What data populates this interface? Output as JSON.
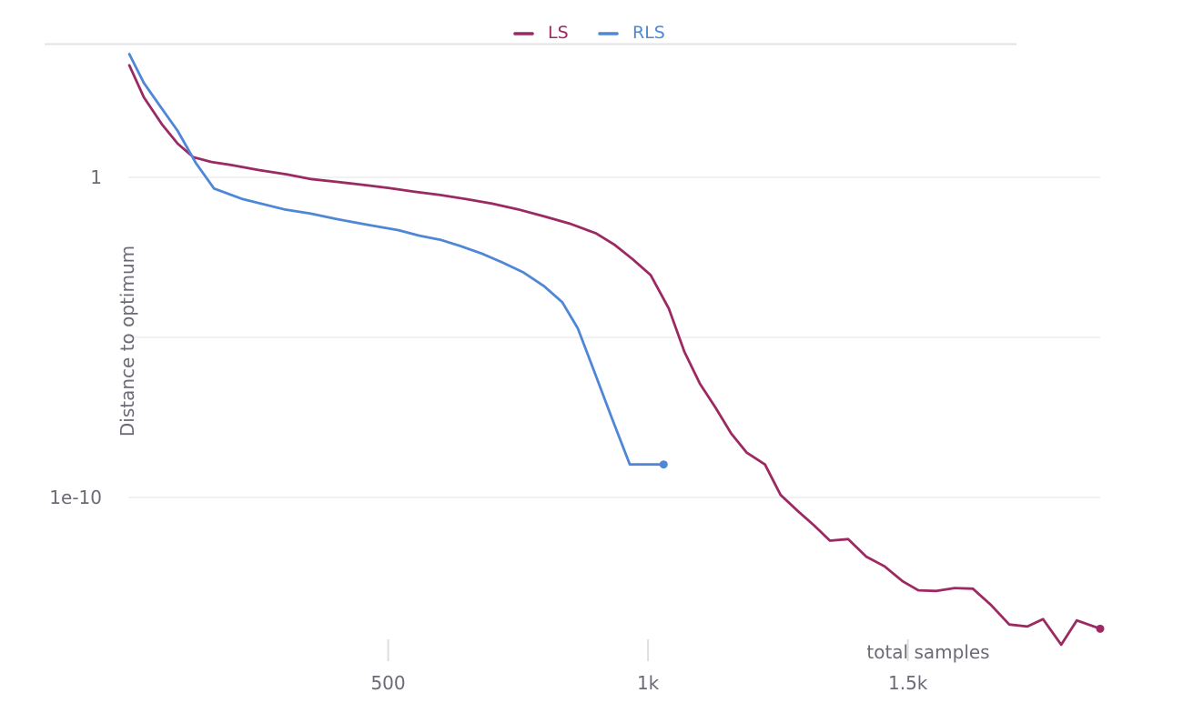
{
  "chart_data": {
    "type": "line",
    "xlabel": "total samples",
    "ylabel": "Distance to optimum",
    "x_scale": "linear",
    "y_scale": "log",
    "xlim": [
      0,
      1870
    ],
    "ylim_log10": [
      -18.3,
      7.5
    ],
    "x_ticks": [
      500,
      1000,
      1500
    ],
    "x_tick_labels": [
      "500",
      "1k",
      "1.5k"
    ],
    "y_ticks_log10": [
      0,
      -5,
      -10
    ],
    "y_tick_labels": [
      "1",
      "",
      "1e-10"
    ],
    "grid": true,
    "legend_position": "top-center",
    "series": [
      {
        "name": "LS",
        "color": "#9c2a62",
        "points_log10": [
          [
            2,
            3.5
          ],
          [
            30,
            2.5
          ],
          [
            65,
            1.65
          ],
          [
            95,
            1.05
          ],
          [
            125,
            0.63
          ],
          [
            160,
            0.48
          ],
          [
            200,
            0.38
          ],
          [
            250,
            0.23
          ],
          [
            305,
            0.09
          ],
          [
            350,
            -0.05
          ],
          [
            400,
            -0.14
          ],
          [
            450,
            -0.23
          ],
          [
            500,
            -0.33
          ],
          [
            550,
            -0.45
          ],
          [
            600,
            -0.55
          ],
          [
            650,
            -0.68
          ],
          [
            700,
            -0.82
          ],
          [
            750,
            -1.0
          ],
          [
            800,
            -1.22
          ],
          [
            850,
            -1.45
          ],
          [
            900,
            -1.75
          ],
          [
            935,
            -2.1
          ],
          [
            970,
            -2.55
          ],
          [
            1005,
            -3.05
          ],
          [
            1040,
            -4.1
          ],
          [
            1070,
            -5.45
          ],
          [
            1100,
            -6.45
          ],
          [
            1130,
            -7.2
          ],
          [
            1160,
            -8.0
          ],
          [
            1190,
            -8.6
          ],
          [
            1225,
            -8.97
          ],
          [
            1255,
            -9.92
          ],
          [
            1290,
            -10.45
          ],
          [
            1320,
            -10.88
          ],
          [
            1350,
            -11.35
          ],
          [
            1385,
            -11.3
          ],
          [
            1420,
            -11.85
          ],
          [
            1455,
            -12.15
          ],
          [
            1490,
            -12.62
          ],
          [
            1520,
            -12.9
          ],
          [
            1555,
            -12.92
          ],
          [
            1590,
            -12.83
          ],
          [
            1625,
            -12.85
          ],
          [
            1660,
            -13.36
          ],
          [
            1695,
            -13.97
          ],
          [
            1730,
            -14.03
          ],
          [
            1760,
            -13.8
          ],
          [
            1795,
            -14.6
          ],
          [
            1825,
            -13.84
          ],
          [
            1870,
            -14.1
          ]
        ]
      },
      {
        "name": "RLS",
        "color": "#4f87d6",
        "points_log10": [
          [
            2,
            3.85
          ],
          [
            30,
            2.95
          ],
          [
            60,
            2.25
          ],
          [
            95,
            1.45
          ],
          [
            130,
            0.45
          ],
          [
            165,
            -0.35
          ],
          [
            220,
            -0.68
          ],
          [
            300,
            -1.0
          ],
          [
            350,
            -1.13
          ],
          [
            400,
            -1.3
          ],
          [
            460,
            -1.48
          ],
          [
            520,
            -1.65
          ],
          [
            560,
            -1.82
          ],
          [
            600,
            -1.95
          ],
          [
            640,
            -2.15
          ],
          [
            680,
            -2.38
          ],
          [
            720,
            -2.66
          ],
          [
            760,
            -2.97
          ],
          [
            800,
            -3.4
          ],
          [
            835,
            -3.9
          ],
          [
            865,
            -4.72
          ],
          [
            895,
            -6.0
          ],
          [
            930,
            -7.5
          ],
          [
            965,
            -8.97
          ],
          [
            995,
            -8.97
          ],
          [
            1030,
            -8.97
          ]
        ]
      }
    ]
  }
}
